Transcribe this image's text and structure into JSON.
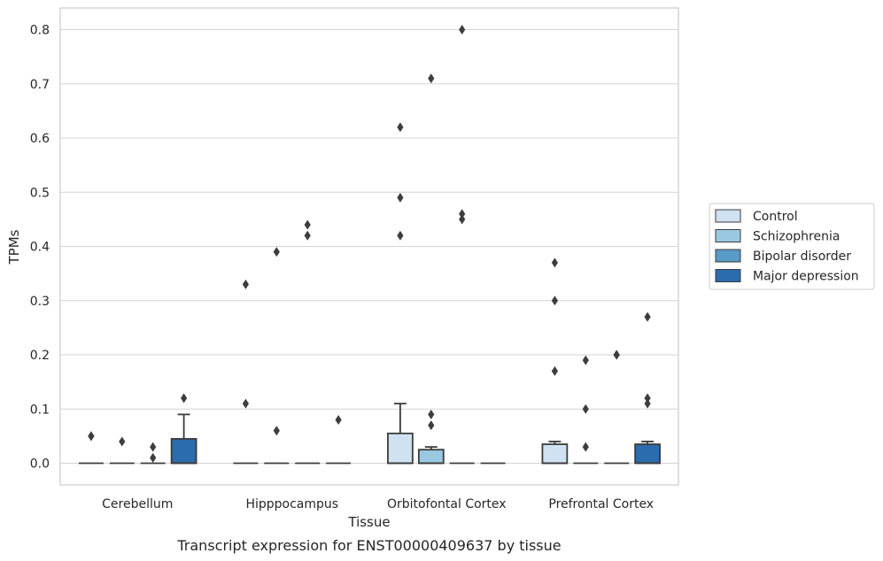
{
  "chart_data": {
    "type": "box",
    "title": "",
    "caption": "Transcript expression for ENST00000409637 by tissue",
    "xlabel": "Tissue",
    "ylabel": "TPMs",
    "ylim": [
      -0.04,
      0.84
    ],
    "yticks": [
      0.0,
      0.1,
      0.2,
      0.3,
      0.4,
      0.5,
      0.6,
      0.7,
      0.8
    ],
    "ytick_labels": [
      "0.0",
      "0.1",
      "0.2",
      "0.3",
      "0.4",
      "0.5",
      "0.6",
      "0.7",
      "0.8"
    ],
    "grid": "horizontal",
    "legend_position": "right",
    "categories": [
      "Cerebellum",
      "Hipppocampus",
      "Orbitofontal Cortex",
      "Prefrontal Cortex"
    ],
    "series": [
      {
        "name": "Control",
        "color": "#d0e1f2",
        "boxes": [
          {
            "q1": 0,
            "median": 0,
            "q3": 0,
            "whisker_low": 0,
            "whisker_high": 0,
            "outliers": [
              0.05,
              0.05
            ]
          },
          {
            "q1": 0,
            "median": 0,
            "q3": 0,
            "whisker_low": 0,
            "whisker_high": 0,
            "outliers": [
              0.33,
              0.11
            ]
          },
          {
            "q1": 0,
            "median": 0,
            "q3": 0.055,
            "whisker_low": 0,
            "whisker_high": 0.11,
            "outliers": [
              0.62,
              0.49,
              0.42
            ]
          },
          {
            "q1": 0,
            "median": 0,
            "q3": 0.035,
            "whisker_low": 0,
            "whisker_high": 0.04,
            "outliers": [
              0.37,
              0.3,
              0.17
            ]
          }
        ]
      },
      {
        "name": "Schizophrenia",
        "color": "#9ac8e0",
        "boxes": [
          {
            "q1": 0,
            "median": 0,
            "q3": 0,
            "whisker_low": 0,
            "whisker_high": 0,
            "outliers": [
              0.04
            ]
          },
          {
            "q1": 0,
            "median": 0,
            "q3": 0,
            "whisker_low": 0,
            "whisker_high": 0,
            "outliers": [
              0.39,
              0.06
            ]
          },
          {
            "q1": 0,
            "median": 0,
            "q3": 0.025,
            "whisker_low": 0,
            "whisker_high": 0.03,
            "outliers": [
              0.71,
              0.09,
              0.07
            ]
          },
          {
            "q1": 0,
            "median": 0,
            "q3": 0,
            "whisker_low": 0,
            "whisker_high": 0,
            "outliers": [
              0.19,
              0.1,
              0.03
            ]
          }
        ]
      },
      {
        "name": "Bipolar disorder",
        "color": "#5a9ac6",
        "boxes": [
          {
            "q1": 0,
            "median": 0,
            "q3": 0,
            "whisker_low": 0,
            "whisker_high": 0,
            "outliers": [
              0.03,
              0.01
            ]
          },
          {
            "q1": 0,
            "median": 0,
            "q3": 0,
            "whisker_low": 0,
            "whisker_high": 0,
            "outliers": [
              0.44,
              0.42
            ]
          },
          {
            "q1": 0,
            "median": 0,
            "q3": 0,
            "whisker_low": 0,
            "whisker_high": 0,
            "outliers": [
              0.8,
              0.46,
              0.45
            ]
          },
          {
            "q1": 0,
            "median": 0,
            "q3": 0,
            "whisker_low": 0,
            "whisker_high": 0,
            "outliers": [
              0.2,
              0.2
            ]
          }
        ]
      },
      {
        "name": "Major depression",
        "color": "#2a6cae",
        "boxes": [
          {
            "q1": 0,
            "median": 0,
            "q3": 0.045,
            "whisker_low": 0,
            "whisker_high": 0.09,
            "outliers": [
              0.12
            ]
          },
          {
            "q1": 0,
            "median": 0,
            "q3": 0,
            "whisker_low": 0,
            "whisker_high": 0,
            "outliers": [
              0.08
            ]
          },
          {
            "q1": 0,
            "median": 0,
            "q3": 0,
            "whisker_low": 0,
            "whisker_high": 0,
            "outliers": []
          },
          {
            "q1": 0,
            "median": 0,
            "q3": 0.035,
            "whisker_low": 0,
            "whisker_high": 0.04,
            "outliers": [
              0.27,
              0.12,
              0.11
            ]
          }
        ]
      }
    ]
  }
}
